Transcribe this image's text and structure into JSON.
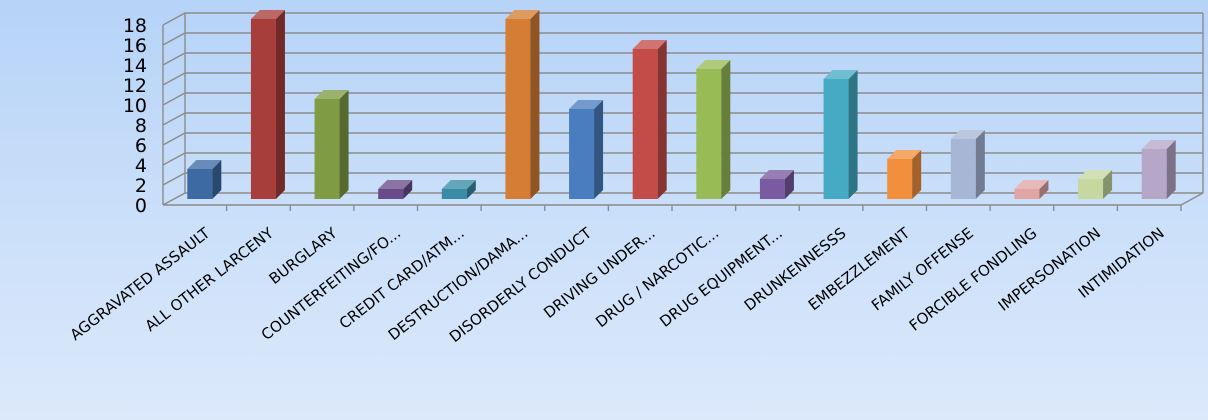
{
  "chart_data": {
    "type": "bar",
    "title": "",
    "xlabel": "",
    "ylabel": "",
    "ylim": [
      0,
      18
    ],
    "yticks": [
      0,
      2,
      4,
      6,
      8,
      10,
      12,
      14,
      16,
      18
    ],
    "grid": true,
    "legend": "none",
    "three_d": true,
    "categories": [
      "AGGRAVATED ASSAULT",
      "ALL OTHER LARCENY",
      "BURGLARY",
      "COUNTERFEITING/FO...",
      "CREDIT CARD/ATM...",
      "DESTRUCTION/DAMA...",
      "DISORDERLY CONDUCT",
      "DRIVING UNDER...",
      "DRUG / NARCOTIC...",
      "DRUG EQUIPMENT...",
      "DRUNKENNESSS",
      "EMBEZZLEMENT",
      "FAMILY OFFENSE",
      "FORCIBLE FONDLING",
      "IMPERSONATION",
      "INTIMIDATION"
    ],
    "values": [
      3,
      18,
      10,
      1,
      1,
      18,
      9,
      15,
      13,
      2,
      12,
      4,
      6,
      1,
      2,
      5
    ],
    "colors": [
      "#3d6aa3",
      "#a83e3c",
      "#7f9c45",
      "#6a4b8a",
      "#3a8ca6",
      "#d47d34",
      "#4a7dbf",
      "#c44c48",
      "#98bb55",
      "#7a5aa0",
      "#45aac4",
      "#f28f3c",
      "#a6b7d6",
      "#e0a5a4",
      "#c4d8a0",
      "#b6a7c8"
    ]
  }
}
